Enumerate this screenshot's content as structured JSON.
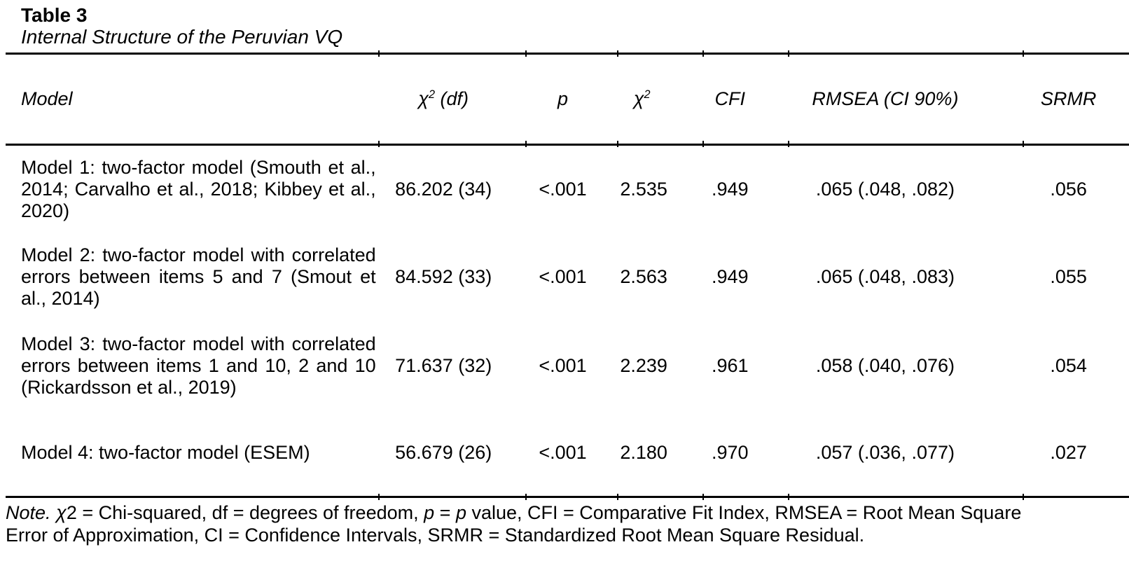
{
  "title": "Table 3",
  "subtitle": "Internal Structure of the Peruvian VQ",
  "table": {
    "headers": {
      "model": "Model",
      "chi_df": {
        "chi": "χ",
        "sup": "2",
        "rest": " (df)"
      },
      "p": "p",
      "chi_ratio": {
        "chi": "χ",
        "sup": "2"
      },
      "cfi": "CFI",
      "rmsea": "RMSEA (CI 90%)",
      "srmr": "SRMR"
    },
    "rows": [
      {
        "model": "Model 1: two-factor model (Smouth et al., 2014; Carvalho et al., 2018; Kibbey et al., 2020)",
        "chi_df": "86.202 (34)",
        "p": "<.001",
        "chi_ratio": "2.535",
        "cfi": ".949",
        "rmsea": ".065 (.048, .082)",
        "srmr": ".056"
      },
      {
        "model": "Model 2: two-factor model with correlated errors between items 5 and 7 (Smout et al., 2014)",
        "chi_df": "84.592 (33)",
        "p": "<.001",
        "chi_ratio": "2.563",
        "cfi": ".949",
        "rmsea": ".065 (.048, .083)",
        "srmr": ".055"
      },
      {
        "model": "Model 3: two-factor model with correlated errors between items 1 and 10, 2 and 10 (Rickardsson et al., 2019)",
        "chi_df": "71.637 (32)",
        "p": "<.001",
        "chi_ratio": "2.239",
        "cfi": ".961",
        "rmsea": ".058 (.040, .076)",
        "srmr": ".054"
      },
      {
        "model": "Model 4: two-factor model (ESEM)",
        "chi_df": "56.679 (26)",
        "p": "<.001",
        "chi_ratio": "2.180",
        "cfi": ".970",
        "rmsea": ".057 (.036, .077)",
        "srmr": ".027"
      }
    ]
  },
  "note": {
    "parts": [
      {
        "text": "Note.",
        "italic": true
      },
      {
        "text": " ",
        "italic": false
      },
      {
        "text": "χ",
        "italic": true
      },
      {
        "text": "2 = Chi-squared, df = degrees of freedom, ",
        "italic": false
      },
      {
        "text": "p",
        "italic": true
      },
      {
        "text": " = ",
        "italic": false
      },
      {
        "text": "p",
        "italic": true
      },
      {
        "text": " value, CFI = Comparative Fit Index, RMSEA = Root Mean Square Error of Approximation, CI = Confidence Intervals, SRMR = Standardized Root Mean Square Residual.",
        "italic": false
      }
    ]
  }
}
